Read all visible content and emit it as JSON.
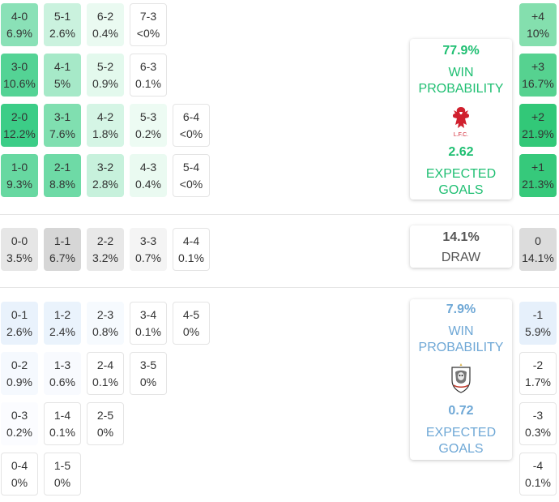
{
  "home": {
    "win_pct": "77.9%",
    "win_label_1": "WIN",
    "win_label_2": "PROBABILITY",
    "xg": "2.62",
    "xg_label_1": "EXPECTED",
    "xg_label_2": "GOALS",
    "crest_text": "L.F.C.",
    "color": "#1fbf72"
  },
  "draw": {
    "pct": "14.1%",
    "label": "DRAW"
  },
  "away": {
    "win_pct": "7.9%",
    "win_label_1": "WIN",
    "win_label_2": "PROBABILITY",
    "xg": "0.72",
    "xg_label_1": "EXPECTED",
    "xg_label_2": "GOALS",
    "color": "#6fa8d6"
  },
  "home_scores": [
    [
      {
        "s": "4-0",
        "p": "6.9%"
      },
      {
        "s": "5-1",
        "p": "2.6%"
      },
      {
        "s": "6-2",
        "p": "0.4%"
      },
      {
        "s": "7-3",
        "p": "<0%"
      }
    ],
    [
      {
        "s": "3-0",
        "p": "10.6%"
      },
      {
        "s": "4-1",
        "p": "5%"
      },
      {
        "s": "5-2",
        "p": "0.9%"
      },
      {
        "s": "6-3",
        "p": "0.1%"
      }
    ],
    [
      {
        "s": "2-0",
        "p": "12.2%"
      },
      {
        "s": "3-1",
        "p": "7.6%"
      },
      {
        "s": "4-2",
        "p": "1.8%"
      },
      {
        "s": "5-3",
        "p": "0.2%"
      },
      {
        "s": "6-4",
        "p": "<0%"
      }
    ],
    [
      {
        "s": "1-0",
        "p": "9.3%"
      },
      {
        "s": "2-1",
        "p": "8.8%"
      },
      {
        "s": "3-2",
        "p": "2.8%"
      },
      {
        "s": "4-3",
        "p": "0.4%"
      },
      {
        "s": "5-4",
        "p": "<0%"
      }
    ]
  ],
  "draw_scores": [
    {
      "s": "0-0",
      "p": "3.5%"
    },
    {
      "s": "1-1",
      "p": "6.7%"
    },
    {
      "s": "2-2",
      "p": "3.2%"
    },
    {
      "s": "3-3",
      "p": "0.7%"
    },
    {
      "s": "4-4",
      "p": "0.1%"
    }
  ],
  "away_scores": [
    [
      {
        "s": "0-1",
        "p": "2.6%"
      },
      {
        "s": "1-2",
        "p": "2.4%"
      },
      {
        "s": "2-3",
        "p": "0.8%"
      },
      {
        "s": "3-4",
        "p": "0.1%"
      },
      {
        "s": "4-5",
        "p": "0%"
      }
    ],
    [
      {
        "s": "0-2",
        "p": "0.9%"
      },
      {
        "s": "1-3",
        "p": "0.6%"
      },
      {
        "s": "2-4",
        "p": "0.1%"
      },
      {
        "s": "3-5",
        "p": "0%"
      }
    ],
    [
      {
        "s": "0-3",
        "p": "0.2%"
      },
      {
        "s": "1-4",
        "p": "0.1%"
      },
      {
        "s": "2-5",
        "p": "0%"
      }
    ],
    [
      {
        "s": "0-4",
        "p": "0%"
      },
      {
        "s": "1-5",
        "p": "0%"
      }
    ]
  ],
  "margins_home": [
    {
      "m": "+4",
      "p": "10%"
    },
    {
      "m": "+3",
      "p": "16.7%"
    },
    {
      "m": "+2",
      "p": "21.9%"
    },
    {
      "m": "+1",
      "p": "21.3%"
    }
  ],
  "margin_draw": {
    "m": "0",
    "p": "14.1%"
  },
  "margins_away": [
    {
      "m": "-1",
      "p": "5.9%"
    },
    {
      "m": "-2",
      "p": "1.7%"
    },
    {
      "m": "-3",
      "p": "0.3%"
    },
    {
      "m": "-4",
      "p": "0.1%"
    }
  ]
}
